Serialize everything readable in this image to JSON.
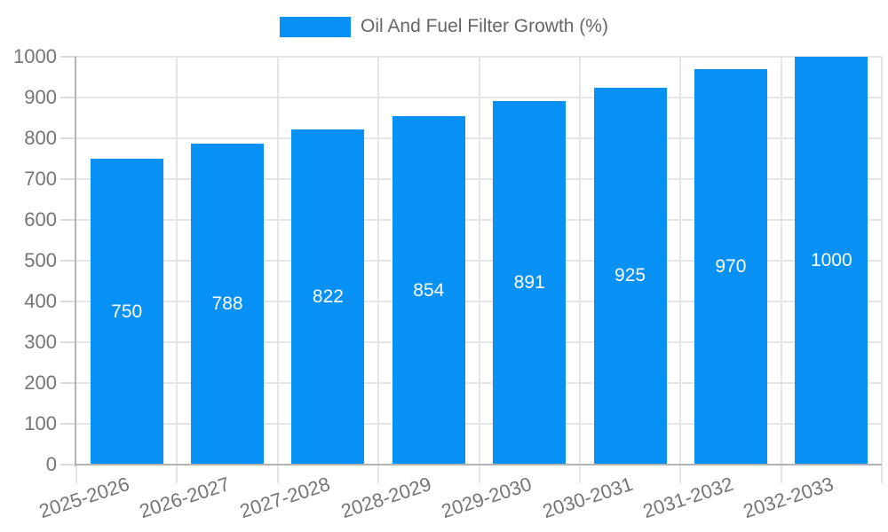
{
  "chart": {
    "background": "#ffffff"
  },
  "legend": {
    "label": "Oil And Fuel Filter Growth (%)",
    "swatch_color": "#0891F5"
  },
  "chart_data": {
    "type": "bar",
    "title": "Oil And Fuel Filter Growth (%)",
    "categories": [
      "2025-2026",
      "2026-2027",
      "2027-2028",
      "2028-2029",
      "2029-2030",
      "2030-2031",
      "2031-2032",
      "2032-2033"
    ],
    "values": [
      750,
      788,
      822,
      854,
      891,
      925,
      970,
      1000
    ],
    "xlabel": "",
    "ylabel": "",
    "ylim": [
      0,
      1000
    ],
    "ytick_interval": 100,
    "grid": true,
    "legend_position": "top-center",
    "bar_color": "#0891F5",
    "value_label_color": "#ffffff",
    "axis_label_color": "#757575",
    "legend_text_color": "#666666",
    "gridline_color": "#e6e6e6",
    "tick_color": "#dcdcdc",
    "axis_line_color": "#b3b3b3"
  }
}
